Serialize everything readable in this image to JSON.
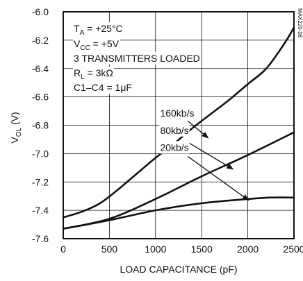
{
  "chart_data": {
    "type": "line",
    "title": "",
    "xlabel": "LOAD CAPACITANCE (pF)",
    "ylabel_main": "V",
    "ylabel_sub": "OL",
    "ylabel_unit": " (V)",
    "xlim": [
      0,
      2500
    ],
    "ylim": [
      -7.6,
      -6.0
    ],
    "grid": true,
    "x_ticks": [
      "0",
      "500",
      "1000",
      "1500",
      "2000",
      "2500"
    ],
    "y_ticks": [
      "-6.0",
      "-6.2",
      "-6.4",
      "-6.6",
      "-6.8",
      "-7.0",
      "-7.2",
      "-7.4",
      "-7.6"
    ],
    "figure_id": "MAX220-08",
    "conditions": {
      "ta_main": "T",
      "ta_sub": "A",
      "ta_rest": " = +25°C",
      "vcc_main": "V",
      "vcc_sub": "CC",
      "vcc_rest": " = +5V",
      "transmitters": "3 TRANSMITTERS LOADED",
      "rl_main": "R",
      "rl_sub": "L",
      "rl_rest": " = 3kΩ",
      "caps": "C1–C4 = 1μF"
    },
    "series": [
      {
        "name": "160kb/s",
        "x": [
          0,
          200,
          400,
          600,
          800,
          1000,
          1200,
          1400,
          1600,
          1800,
          2000,
          2200,
          2400,
          2500
        ],
        "y": [
          -7.45,
          -7.41,
          -7.35,
          -7.25,
          -7.14,
          -7.03,
          -6.93,
          -6.82,
          -6.72,
          -6.62,
          -6.51,
          -6.4,
          -6.22,
          -6.11
        ]
      },
      {
        "name": "80kb/s",
        "x": [
          0,
          500,
          1000,
          1500,
          2000,
          2500
        ],
        "y": [
          -7.53,
          -7.46,
          -7.32,
          -7.16,
          -7.01,
          -6.85
        ]
      },
      {
        "name": "20kb/s",
        "x": [
          0,
          500,
          1000,
          1500,
          2000,
          2250,
          2500
        ],
        "y": [
          -7.53,
          -7.47,
          -7.4,
          -7.35,
          -7.32,
          -7.31,
          -7.31
        ]
      }
    ],
    "annotations": [
      {
        "text": "160kb/s",
        "series_index": 0,
        "text_x": 1050,
        "text_y": -6.74,
        "arrow_from": [
          1350,
          -6.77
        ],
        "arrow_to": [
          1570,
          -6.89
        ]
      },
      {
        "text": "80kb/s",
        "series_index": 1,
        "text_x": 1050,
        "text_y": -6.86,
        "arrow_from": [
          1350,
          -6.92
        ],
        "arrow_to": [
          1840,
          -7.11
        ]
      },
      {
        "text": "20kb/s",
        "series_index": 2,
        "text_x": 1050,
        "text_y": -6.98,
        "arrow_from": [
          1350,
          -7.02
        ],
        "arrow_to": [
          2010,
          -7.33
        ]
      }
    ]
  }
}
